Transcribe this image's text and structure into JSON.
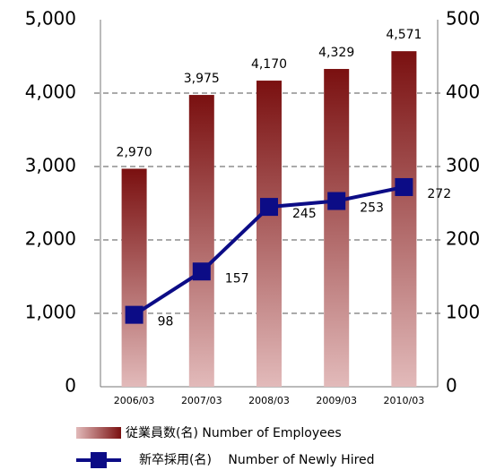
{
  "chart_data": {
    "type": "bar_line",
    "categories": [
      "2006/03",
      "2007/03",
      "2008/03",
      "2009/03",
      "2010/03"
    ],
    "series": [
      {
        "name": "従業員数(名) Number of Employees",
        "color": "#7a1010",
        "values": [
          2970,
          3975,
          4170,
          4329,
          4571
        ],
        "value_labels": [
          "2,970",
          "3,975",
          "4,170",
          "4,329",
          "4,571"
        ]
      },
      {
        "name": "新卒採用(名)　 Number of Newly Hired",
        "color": "#0c0c86",
        "axis": "y2",
        "values": [
          98,
          157,
          245,
          253,
          272
        ]
      }
    ],
    "ylim": [
      0,
      5000
    ],
    "yticks": [
      0,
      {
        "value": 1000,
        "label": "1,000"
      },
      {
        "value": 2000,
        "label": "2,000"
      },
      {
        "value": 3000,
        "label": "3,000"
      },
      {
        "value": 4000,
        "label": "4,000"
      },
      {
        "value": 5000,
        "label": "5,000"
      }
    ],
    "y2lim": [
      0,
      500
    ],
    "y2ticks": [
      0,
      100,
      200,
      300,
      400,
      500
    ],
    "grid": true
  }
}
